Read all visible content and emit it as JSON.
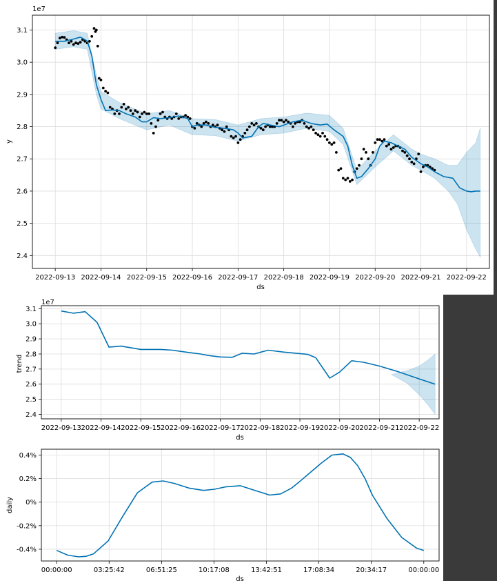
{
  "chart_data": [
    {
      "type": "line",
      "title": "",
      "xlabel": "ds",
      "ylabel": "y",
      "offset_label": "1e7",
      "ylim": [
        2.36,
        3.146
      ],
      "xlim": [
        -0.5,
        9.5
      ],
      "grid": true,
      "x_ticks": [
        0,
        1,
        2,
        3,
        4,
        5,
        6,
        7,
        8,
        9
      ],
      "x_tick_labels": [
        "2022-09-13",
        "2022-09-14",
        "2022-09-15",
        "2022-09-16",
        "2022-09-17",
        "2022-09-18",
        "2022-09-19",
        "2022-09-20",
        "2022-09-21",
        "2022-09-22"
      ],
      "y_ticks": [
        2.4,
        2.5,
        2.6,
        2.7,
        2.8,
        2.9,
        3.0,
        3.1
      ],
      "y_tick_labels": [
        "2.4",
        "2.5",
        "2.6",
        "2.7",
        "2.8",
        "2.9",
        "3.0",
        "3.1"
      ],
      "series": [
        {
          "name": "yhat",
          "color": "#0072b2",
          "x": [
            0,
            0.2,
            0.4,
            0.55,
            0.7,
            0.8,
            0.9,
            1.0,
            1.1,
            1.25,
            1.4,
            1.55,
            1.75,
            1.9,
            2.0,
            2.15,
            2.3,
            2.5,
            2.7,
            2.9,
            3.0,
            3.1,
            3.3,
            3.5,
            3.7,
            3.9,
            4.0,
            4.1,
            4.3,
            4.45,
            4.55,
            4.7,
            4.9,
            5.0,
            5.2,
            5.4,
            5.6,
            5.8,
            5.95,
            6.1,
            6.2,
            6.3,
            6.4,
            6.5,
            6.6,
            6.7,
            6.85,
            7.0,
            7.1,
            7.2,
            7.35,
            7.5,
            7.65,
            7.8,
            7.95,
            8.0,
            8.15,
            8.3,
            8.5,
            8.7,
            8.85,
            9.0,
            9.1,
            9.2,
            9.3
          ],
          "values": [
            3.065,
            3.065,
            3.072,
            3.078,
            3.066,
            3.02,
            2.93,
            2.885,
            2.85,
            2.852,
            2.85,
            2.84,
            2.83,
            2.815,
            2.815,
            2.828,
            2.825,
            2.828,
            2.833,
            2.825,
            2.8,
            2.805,
            2.805,
            2.798,
            2.795,
            2.79,
            2.78,
            2.765,
            2.77,
            2.8,
            2.81,
            2.805,
            2.8,
            2.805,
            2.815,
            2.82,
            2.81,
            2.805,
            2.808,
            2.79,
            2.78,
            2.77,
            2.74,
            2.68,
            2.64,
            2.645,
            2.67,
            2.7,
            2.74,
            2.755,
            2.75,
            2.74,
            2.73,
            2.705,
            2.69,
            2.685,
            2.675,
            2.66,
            2.645,
            2.64,
            2.61,
            2.6,
            2.598,
            2.6,
            2.6
          ]
        },
        {
          "name": "uncertainty_upper",
          "x": [
            0,
            0.4,
            0.7,
            0.9,
            1.0,
            1.4,
            2.0,
            2.5,
            3.0,
            3.5,
            4.0,
            4.5,
            5.0,
            5.5,
            6.0,
            6.3,
            6.6,
            7.0,
            7.4,
            7.8,
            8.0,
            8.3,
            8.6,
            8.8,
            9.0,
            9.2,
            9.3
          ],
          "values": [
            3.09,
            3.098,
            3.09,
            2.96,
            2.91,
            2.875,
            2.84,
            2.85,
            2.825,
            2.822,
            2.805,
            2.825,
            2.83,
            2.842,
            2.835,
            2.795,
            2.665,
            2.725,
            2.775,
            2.73,
            2.715,
            2.7,
            2.68,
            2.68,
            2.72,
            2.75,
            2.795
          ]
        },
        {
          "name": "uncertainty_lower",
          "x": [
            0,
            0.4,
            0.7,
            0.9,
            1.0,
            1.4,
            2.0,
            2.5,
            3.0,
            3.5,
            4.0,
            4.5,
            5.0,
            5.5,
            6.0,
            6.3,
            6.6,
            7.0,
            7.4,
            7.8,
            8.0,
            8.3,
            8.6,
            8.8,
            9.0,
            9.2,
            9.3
          ],
          "values": [
            3.04,
            3.048,
            3.04,
            2.9,
            2.855,
            2.825,
            2.79,
            2.805,
            2.775,
            2.772,
            2.755,
            2.775,
            2.78,
            2.795,
            2.785,
            2.745,
            2.62,
            2.675,
            2.725,
            2.68,
            2.665,
            2.64,
            2.6,
            2.56,
            2.48,
            2.42,
            2.395
          ]
        }
      ],
      "points": {
        "name": "observed",
        "color": "#000000",
        "x": [
          0,
          0.05,
          0.1,
          0.15,
          0.2,
          0.25,
          0.3,
          0.35,
          0.4,
          0.45,
          0.5,
          0.55,
          0.6,
          0.65,
          0.7,
          0.75,
          0.8,
          0.85,
          0.88,
          0.9,
          0.93,
          0.96,
          1.0,
          1.05,
          1.1,
          1.15,
          1.2,
          1.25,
          1.3,
          1.35,
          1.4,
          1.45,
          1.5,
          1.55,
          1.6,
          1.65,
          1.7,
          1.75,
          1.8,
          1.85,
          1.9,
          1.95,
          2.0,
          2.05,
          2.1,
          2.15,
          2.2,
          2.25,
          2.3,
          2.35,
          2.4,
          2.45,
          2.5,
          2.55,
          2.6,
          2.65,
          2.7,
          2.75,
          2.8,
          2.85,
          2.9,
          2.95,
          3.0,
          3.05,
          3.1,
          3.15,
          3.2,
          3.25,
          3.3,
          3.35,
          3.4,
          3.45,
          3.5,
          3.55,
          3.6,
          3.65,
          3.7,
          3.75,
          3.8,
          3.85,
          3.9,
          3.95,
          4.0,
          4.05,
          4.1,
          4.15,
          4.2,
          4.25,
          4.3,
          4.35,
          4.4,
          4.45,
          4.5,
          4.55,
          4.6,
          4.65,
          4.7,
          4.75,
          4.8,
          4.85,
          4.9,
          4.95,
          5.0,
          5.05,
          5.1,
          5.15,
          5.2,
          5.25,
          5.3,
          5.35,
          5.4,
          5.45,
          5.5,
          5.55,
          5.6,
          5.65,
          5.7,
          5.75,
          5.8,
          5.85,
          5.9,
          5.95,
          6.0,
          6.05,
          6.1,
          6.15,
          6.2,
          6.25,
          6.3,
          6.35,
          6.4,
          6.45,
          6.5,
          6.55,
          6.6,
          6.65,
          6.7,
          6.75,
          6.8,
          6.85,
          6.9,
          6.95,
          7.0,
          7.05,
          7.1,
          7.15,
          7.2,
          7.25,
          7.3,
          7.35,
          7.4,
          7.45,
          7.5,
          7.55,
          7.6,
          7.65,
          7.7,
          7.75,
          7.8,
          7.85,
          7.9,
          7.95,
          8.0,
          8.05,
          8.1,
          8.15,
          8.2,
          8.25,
          8.3
        ],
        "values": [
          3.045,
          3.06,
          3.075,
          3.078,
          3.077,
          3.07,
          3.06,
          3.065,
          3.055,
          3.06,
          3.058,
          3.062,
          3.07,
          3.065,
          3.06,
          3.065,
          3.08,
          3.105,
          3.095,
          3.1,
          3.05,
          2.95,
          2.945,
          2.92,
          2.91,
          2.905,
          2.86,
          2.855,
          2.84,
          2.85,
          2.84,
          2.86,
          2.87,
          2.855,
          2.86,
          2.85,
          2.84,
          2.85,
          2.845,
          2.83,
          2.84,
          2.845,
          2.84,
          2.84,
          2.81,
          2.78,
          2.8,
          2.82,
          2.84,
          2.845,
          2.83,
          2.825,
          2.83,
          2.825,
          2.83,
          2.84,
          2.825,
          2.83,
          2.83,
          2.835,
          2.83,
          2.825,
          2.8,
          2.795,
          2.81,
          2.805,
          2.8,
          2.81,
          2.815,
          2.81,
          2.8,
          2.805,
          2.8,
          2.805,
          2.795,
          2.79,
          2.785,
          2.8,
          2.79,
          2.77,
          2.765,
          2.77,
          2.75,
          2.76,
          2.77,
          2.78,
          2.79,
          2.8,
          2.81,
          2.805,
          2.81,
          2.8,
          2.795,
          2.79,
          2.8,
          2.805,
          2.8,
          2.8,
          2.8,
          2.81,
          2.82,
          2.82,
          2.815,
          2.82,
          2.815,
          2.81,
          2.8,
          2.81,
          2.815,
          2.815,
          2.82,
          2.81,
          2.8,
          2.795,
          2.8,
          2.79,
          2.78,
          2.775,
          2.77,
          2.78,
          2.77,
          2.76,
          2.75,
          2.745,
          2.75,
          2.72,
          2.665,
          2.67,
          2.64,
          2.635,
          2.64,
          2.63,
          2.635,
          2.66,
          2.67,
          2.68,
          2.7,
          2.73,
          2.72,
          2.7,
          2.68,
          2.72,
          2.75,
          2.76,
          2.76,
          2.755,
          2.76,
          2.74,
          2.745,
          2.73,
          2.735,
          2.74,
          2.74,
          2.735,
          2.725,
          2.72,
          2.71,
          2.7,
          2.69,
          2.685,
          2.7,
          2.715,
          2.66,
          2.675,
          2.68,
          2.68,
          2.675,
          2.67,
          2.665
        ]
      }
    },
    {
      "type": "line",
      "title": "",
      "xlabel": "ds",
      "ylabel": "trend",
      "offset_label": "1e7",
      "ylim": [
        2.37,
        3.12
      ],
      "xlim": [
        -0.5,
        9.5
      ],
      "grid": true,
      "x_ticks": [
        0,
        1,
        2,
        3,
        4,
        5,
        6,
        7,
        8,
        9
      ],
      "x_tick_labels": [
        "2022-09-13",
        "2022-09-14",
        "2022-09-15",
        "2022-09-16",
        "2022-09-17",
        "2022-09-18",
        "2022-09-19",
        "2022-09-20",
        "2022-09-21",
        "2022-09-22"
      ],
      "y_ticks": [
        2.4,
        2.5,
        2.6,
        2.7,
        2.8,
        2.9,
        3.0,
        3.1
      ],
      "y_tick_labels": [
        "2.4",
        "2.5",
        "2.6",
        "2.7",
        "2.8",
        "2.9",
        "3.0",
        "3.1"
      ],
      "series": [
        {
          "name": "trend",
          "color": "#0072b2",
          "x": [
            0,
            0.3,
            0.6,
            0.9,
            1.2,
            1.5,
            2.0,
            2.5,
            2.8,
            3.2,
            3.5,
            3.7,
            4.0,
            4.3,
            4.55,
            4.85,
            5.2,
            5.6,
            5.9,
            6.2,
            6.4,
            6.75,
            7.0,
            7.3,
            7.6,
            8.0,
            8.5,
            9.0,
            9.4
          ],
          "values": [
            3.085,
            3.07,
            3.08,
            3.01,
            2.845,
            2.852,
            2.83,
            2.83,
            2.825,
            2.81,
            2.8,
            2.79,
            2.78,
            2.778,
            2.805,
            2.8,
            2.825,
            2.812,
            2.805,
            2.797,
            2.775,
            2.64,
            2.68,
            2.755,
            2.745,
            2.72,
            2.68,
            2.635,
            2.6
          ]
        },
        {
          "name": "uncertainty_upper",
          "x": [
            8.3,
            8.7,
            9.0,
            9.2,
            9.4
          ],
          "values": [
            2.664,
            2.69,
            2.72,
            2.755,
            2.8
          ]
        },
        {
          "name": "uncertainty_lower",
          "x": [
            8.3,
            8.7,
            9.0,
            9.2,
            9.4
          ],
          "values": [
            2.664,
            2.605,
            2.53,
            2.47,
            2.4
          ]
        }
      ]
    },
    {
      "type": "line",
      "title": "",
      "xlabel": "ds",
      "ylabel": "daily",
      "ylim": [
        -0.5,
        0.45
      ],
      "xlim": [
        -0.0417,
        1.0417
      ],
      "grid": true,
      "x_ticks": [
        0,
        0.14286,
        0.28571,
        0.42857,
        0.57143,
        0.71429,
        0.85714,
        1.0
      ],
      "x_tick_labels": [
        "00:00:00",
        "03:25:42",
        "06:51:25",
        "10:17:08",
        "13:42:51",
        "17:08:34",
        "20:34:17",
        "00:00:00"
      ],
      "y_ticks": [
        -0.4,
        -0.2,
        0.0,
        0.2,
        0.4
      ],
      "y_tick_labels": [
        "-0.4%",
        "-0.2%",
        "0%",
        "0.2%",
        "0.4%"
      ],
      "series": [
        {
          "name": "daily",
          "color": "#0072b2",
          "x": [
            0,
            0.03,
            0.06,
            0.08,
            0.1,
            0.14,
            0.18,
            0.22,
            0.26,
            0.29,
            0.32,
            0.36,
            0.4,
            0.43,
            0.46,
            0.5,
            0.54,
            0.58,
            0.61,
            0.64,
            0.66,
            0.69,
            0.72,
            0.75,
            0.78,
            0.8,
            0.82,
            0.84,
            0.86,
            0.9,
            0.94,
            0.98,
            1.0
          ],
          "values": [
            -0.41,
            -0.45,
            -0.465,
            -0.46,
            -0.44,
            -0.33,
            -0.12,
            0.08,
            0.17,
            0.18,
            0.16,
            0.12,
            0.1,
            0.11,
            0.13,
            0.14,
            0.1,
            0.06,
            0.07,
            0.12,
            0.17,
            0.25,
            0.33,
            0.4,
            0.41,
            0.38,
            0.31,
            0.2,
            0.06,
            -0.14,
            -0.3,
            -0.39,
            -0.41
          ]
        }
      ]
    }
  ]
}
